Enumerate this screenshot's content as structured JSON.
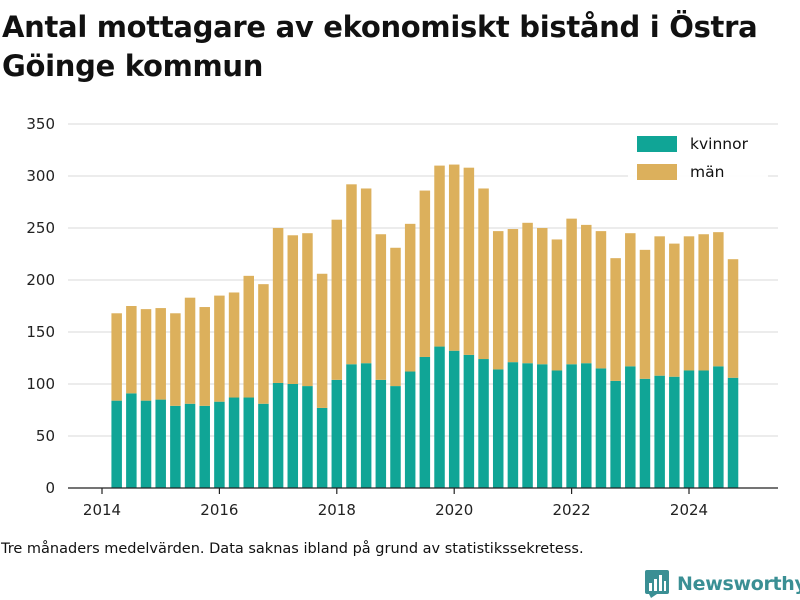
{
  "title": "Antal mottagare av ekonomiskt bistånd i Östra Göinge kommun",
  "footnote": "Tre månaders medelvärden. Data saknas ibland på grund av statistikssekretess.",
  "brand": {
    "name": "Newsworthy",
    "icon": "bar-chart-logo-icon",
    "color": "#3a8f94"
  },
  "chart_data": {
    "type": "bar",
    "stacked": true,
    "x_start": "2014-04",
    "x_step_months": 3,
    "x_ticks": [
      "2014",
      "2016",
      "2018",
      "2020",
      "2022",
      "2024"
    ],
    "y_ticks": [
      "0",
      "50",
      "100",
      "150",
      "200",
      "250",
      "300",
      "350"
    ],
    "ylim": [
      0,
      350
    ],
    "grid": true,
    "legend_position": "top-right",
    "series": [
      {
        "name": "kvinnor",
        "color": "#10a596",
        "values": [
          84,
          91,
          84,
          85,
          79,
          81,
          79,
          83,
          87,
          87,
          81,
          101,
          100,
          98,
          77,
          104,
          119,
          120,
          104,
          98,
          112,
          126,
          136,
          132,
          128,
          124,
          114,
          121,
          120,
          119,
          113,
          119,
          120,
          115,
          103,
          117,
          105,
          108,
          107,
          113,
          113,
          117,
          106
        ]
      },
      {
        "name": "män",
        "color": "#dcb05c",
        "values": [
          84,
          84,
          88,
          88,
          89,
          102,
          95,
          102,
          101,
          117,
          115,
          149,
          143,
          147,
          129,
          154,
          173,
          168,
          140,
          133,
          142,
          160,
          174,
          179,
          180,
          164,
          133,
          128,
          135,
          131,
          126,
          140,
          133,
          132,
          118,
          128,
          124,
          134,
          128,
          129,
          131,
          129,
          114
        ]
      }
    ]
  }
}
